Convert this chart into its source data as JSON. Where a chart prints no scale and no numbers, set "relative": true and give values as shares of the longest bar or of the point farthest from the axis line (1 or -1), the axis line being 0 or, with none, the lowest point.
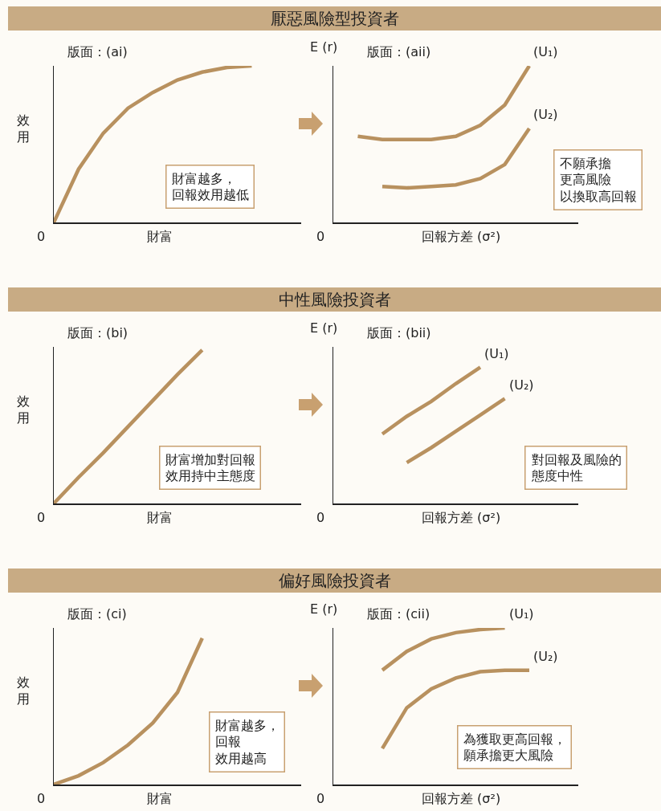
{
  "chart_data": [
    {
      "type": "line",
      "xlabel": "財富",
      "ylabel": "效用",
      "relative": true,
      "legend": false,
      "grid": false,
      "marker": "none",
      "line_style": "solid",
      "annotations": [
        "版面：(ai)",
        "財富越多，回報效用越低",
        "0"
      ],
      "categories": [
        null,
        null,
        null,
        null,
        null,
        null,
        null,
        null,
        null,
        null,
        null
      ],
      "series": [
        {
          "color": "#b8915f",
          "values": [
            0,
            0.34,
            0.57,
            0.73,
            0.83,
            0.91,
            0.96,
            0.99,
            1.0,
            null,
            null
          ]
        }
      ]
    },
    {
      "type": "line",
      "title": "厭惡風險型投資者",
      "xlabel": "回報方差 (σ²)",
      "ylabel": "E (r)",
      "relative": true,
      "legend": false,
      "grid": false,
      "marker": "none",
      "line_style": "solid",
      "annotations": [
        "版面：(aii)",
        "不願承擔更高風險以換取高回報",
        "0"
      ],
      "categories": [
        null,
        null,
        null,
        null,
        null,
        null,
        null,
        null,
        null,
        null,
        null
      ],
      "series": [
        {
          "name": "(U₁)",
          "color": "#b8915f",
          "values": [
            null,
            0.55,
            0.53,
            0.53,
            0.53,
            0.55,
            0.62,
            0.75,
            1.0,
            null,
            null
          ]
        },
        {
          "name": "(U₂)",
          "color": "#b8915f",
          "values": [
            null,
            null,
            0.23,
            0.22,
            0.23,
            0.24,
            0.28,
            0.37,
            0.6,
            null,
            null
          ]
        }
      ]
    },
    {
      "type": "line",
      "xlabel": "財富",
      "ylabel": "效用",
      "relative": true,
      "legend": false,
      "grid": false,
      "marker": "none",
      "line_style": "solid",
      "annotations": [
        "版面：(bi)",
        "財富增加對回報效用持中主態度",
        "0"
      ],
      "categories": [
        null,
        null,
        null,
        null,
        null,
        null,
        null
      ],
      "series": [
        {
          "color": "#b8915f",
          "values": [
            0,
            0.17,
            0.33,
            0.5,
            0.67,
            0.84,
            1.0
          ]
        }
      ]
    },
    {
      "type": "line",
      "title": "中性風險投資者",
      "xlabel": "回報方差 (σ²)",
      "ylabel": "E (r)",
      "relative": true,
      "legend": false,
      "grid": false,
      "marker": "none",
      "line_style": "solid",
      "annotations": [
        "版面：(bii)",
        "對回報及風險的態度中性",
        "0"
      ],
      "categories": [
        null,
        null,
        null,
        null,
        null,
        null,
        null,
        null
      ],
      "series": [
        {
          "name": "(U₁)",
          "color": "#b8915f",
          "values": [
            null,
            null,
            0.51,
            0.64,
            0.75,
            0.88,
            1.0,
            null
          ]
        },
        {
          "name": "(U₂)",
          "color": "#b8915f",
          "values": [
            null,
            null,
            null,
            0.3,
            0.41,
            0.53,
            0.65,
            0.77
          ]
        }
      ]
    },
    {
      "type": "line",
      "xlabel": "財富",
      "ylabel": "效用",
      "relative": true,
      "legend": false,
      "grid": false,
      "marker": "none",
      "line_style": "solid",
      "annotations": [
        "版面：(ci)",
        "財富越多，回報效用越高",
        "0"
      ],
      "categories": [
        null,
        null,
        null,
        null,
        null,
        null,
        null
      ],
      "series": [
        {
          "color": "#b8915f",
          "values": [
            0,
            0.06,
            0.15,
            0.27,
            0.42,
            0.63,
            1.0
          ]
        }
      ]
    },
    {
      "type": "line",
      "title": "偏好風險投資者",
      "xlabel": "回報方差 (σ²)",
      "ylabel": "E (r)",
      "relative": true,
      "legend": false,
      "grid": false,
      "marker": "none",
      "line_style": "solid",
      "annotations": [
        "版面：(cii)",
        "為獲取更高回報，願承擔更大風險",
        "0"
      ],
      "categories": [
        null,
        null,
        null,
        null,
        null,
        null,
        null,
        null,
        null,
        null,
        null
      ],
      "series": [
        {
          "name": "(U₁)",
          "color": "#b8915f",
          "values": [
            null,
            null,
            0.73,
            0.85,
            0.93,
            0.97,
            0.99,
            1.0,
            null,
            null,
            null
          ]
        },
        {
          "name": "(U₂)",
          "color": "#b8915f",
          "values": [
            null,
            null,
            0.23,
            0.49,
            0.61,
            0.68,
            0.72,
            0.73,
            0.73,
            null,
            null
          ]
        }
      ]
    }
  ]
}
